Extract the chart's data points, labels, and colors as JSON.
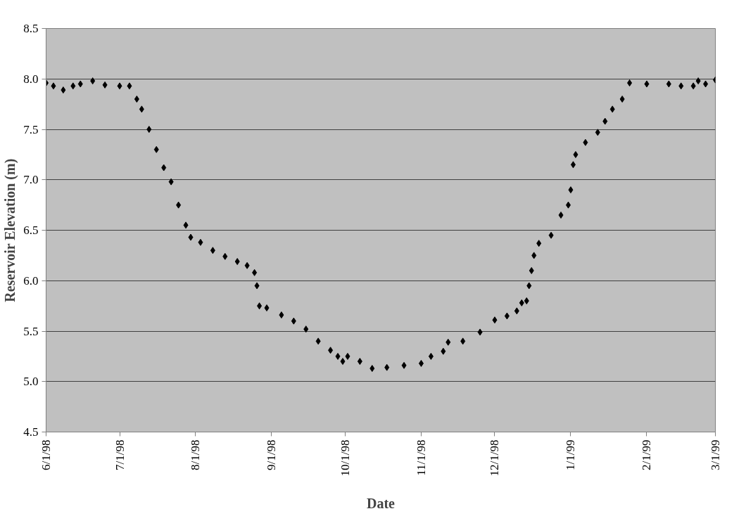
{
  "chart_data": {
    "type": "scatter",
    "xlabel": "Date",
    "ylabel": "Reservoir Elevation (m)",
    "marker": "diamond",
    "grid": "y",
    "xlim": [
      "1998-06-01",
      "1999-03-01"
    ],
    "xticks": [
      {
        "value": "1998-06-01",
        "label": "6/1/98"
      },
      {
        "value": "1998-07-01",
        "label": "7/1/98"
      },
      {
        "value": "1998-08-01",
        "label": "8/1/98"
      },
      {
        "value": "1998-09-01",
        "label": "9/1/98"
      },
      {
        "value": "1998-10-01",
        "label": "10/1/98"
      },
      {
        "value": "1998-11-01",
        "label": "11/1/98"
      },
      {
        "value": "1998-12-01",
        "label": "12/1/98"
      },
      {
        "value": "1999-01-01",
        "label": "1/1/99"
      },
      {
        "value": "1999-02-01",
        "label": "2/1/99"
      },
      {
        "value": "1999-03-01",
        "label": "3/1/99"
      }
    ],
    "ylim": [
      4.5,
      8.5
    ],
    "yticks": [
      {
        "value": 4.5,
        "label": "4.5"
      },
      {
        "value": 5,
        "label": "5.0"
      },
      {
        "value": 5.5,
        "label": "5.5"
      },
      {
        "value": 6,
        "label": "6.0"
      },
      {
        "value": 6.5,
        "label": "6.5"
      },
      {
        "value": 7,
        "label": "7.0"
      },
      {
        "value": 7.5,
        "label": "7.5"
      },
      {
        "value": 8,
        "label": "8.0"
      },
      {
        "value": 8.5,
        "label": "8.5"
      }
    ],
    "series": [
      {
        "color": "#000000",
        "x": [
          "1998-06-01",
          "1998-06-04",
          "1998-06-08",
          "1998-06-12",
          "1998-06-15",
          "1998-06-20",
          "1998-06-25",
          "1998-07-01",
          "1998-07-05",
          "1998-07-08",
          "1998-07-10",
          "1998-07-13",
          "1998-07-16",
          "1998-07-19",
          "1998-07-22",
          "1998-07-25",
          "1998-07-28",
          "1998-07-30",
          "1998-08-03",
          "1998-08-08",
          "1998-08-13",
          "1998-08-18",
          "1998-08-22",
          "1998-08-25",
          "1998-08-26",
          "1998-08-27",
          "1998-08-30",
          "1998-09-05",
          "1998-09-10",
          "1998-09-15",
          "1998-09-20",
          "1998-09-25",
          "1998-09-28",
          "1998-09-30",
          "1998-10-02",
          "1998-10-07",
          "1998-10-12",
          "1998-10-18",
          "1998-10-25",
          "1998-11-01",
          "1998-11-05",
          "1998-11-10",
          "1998-11-12",
          "1998-11-18",
          "1998-11-25",
          "1998-12-01",
          "1998-12-06",
          "1998-12-10",
          "1998-12-12",
          "1998-12-14",
          "1998-12-15",
          "1998-12-16",
          "1998-12-17",
          "1998-12-19",
          "1998-12-24",
          "1998-12-28",
          "1998-12-31",
          "1999-01-01",
          "1999-01-02",
          "1999-01-03",
          "1999-01-07",
          "1999-01-12",
          "1999-01-15",
          "1999-01-18",
          "1999-01-22",
          "1999-01-25",
          "1999-02-01",
          "1999-02-10",
          "1999-02-15",
          "1999-02-20",
          "1999-02-22",
          "1999-02-25",
          "1999-03-01"
        ],
        "values": [
          7.96,
          7.93,
          7.89,
          7.93,
          7.95,
          7.98,
          7.94,
          7.93,
          7.93,
          7.8,
          7.7,
          7.5,
          7.3,
          7.12,
          6.98,
          6.75,
          6.55,
          6.43,
          6.38,
          6.3,
          6.24,
          6.19,
          6.15,
          6.08,
          5.95,
          5.75,
          5.73,
          5.66,
          5.6,
          5.52,
          5.4,
          5.31,
          5.25,
          5.2,
          5.25,
          5.2,
          5.13,
          5.14,
          5.16,
          5.18,
          5.25,
          5.3,
          5.39,
          5.4,
          5.49,
          5.61,
          5.65,
          5.7,
          5.78,
          5.8,
          5.95,
          6.1,
          6.25,
          6.37,
          6.45,
          6.65,
          6.75,
          6.9,
          7.15,
          7.25,
          7.37,
          7.47,
          7.58,
          7.7,
          7.8,
          7.96,
          7.95,
          7.95,
          7.93,
          7.93,
          7.98,
          7.95,
          7.99
        ]
      }
    ]
  }
}
